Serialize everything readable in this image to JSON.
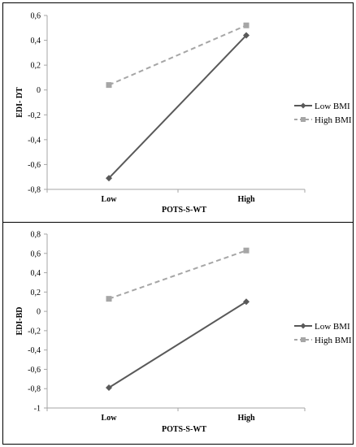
{
  "chart_data": [
    {
      "type": "line",
      "categories": [
        "Low",
        "High"
      ],
      "xlabel": "POTS-S-WT",
      "ylabel": "EDI- DT",
      "ylim": [
        -0.8,
        0.6
      ],
      "ytick_step": 0.2,
      "yticks": [
        "-0,8",
        "-0,6",
        "-0,4",
        "-0,2",
        "0",
        "0,2",
        "0,4",
        "0,6"
      ],
      "grid": false,
      "legend_position": "right",
      "series": [
        {
          "name": "Low BMI",
          "values": [
            -0.71,
            0.44
          ],
          "color": "#595959",
          "style": "solid",
          "marker": "diamond"
        },
        {
          "name": "High BMI",
          "values": [
            0.04,
            0.52
          ],
          "color": "#a6a6a6",
          "style": "dashed",
          "marker": "square"
        }
      ]
    },
    {
      "type": "line",
      "categories": [
        "Low",
        "High"
      ],
      "xlabel": "POTS-S-WT",
      "ylabel": "EDI-BD",
      "ylim": [
        -1,
        0.8
      ],
      "ytick_step": 0.2,
      "yticks": [
        "-1",
        "-0,8",
        "-0,6",
        "-0,4",
        "-0,2",
        "0",
        "0,2",
        "0,4",
        "0,6",
        "0,8"
      ],
      "grid": false,
      "legend_position": "right",
      "series": [
        {
          "name": "Low BMI",
          "values": [
            -0.79,
            0.1
          ],
          "color": "#595959",
          "style": "solid",
          "marker": "diamond"
        },
        {
          "name": "High BMI",
          "values": [
            0.13,
            0.63
          ],
          "color": "#a6a6a6",
          "style": "dashed",
          "marker": "square"
        }
      ]
    }
  ]
}
